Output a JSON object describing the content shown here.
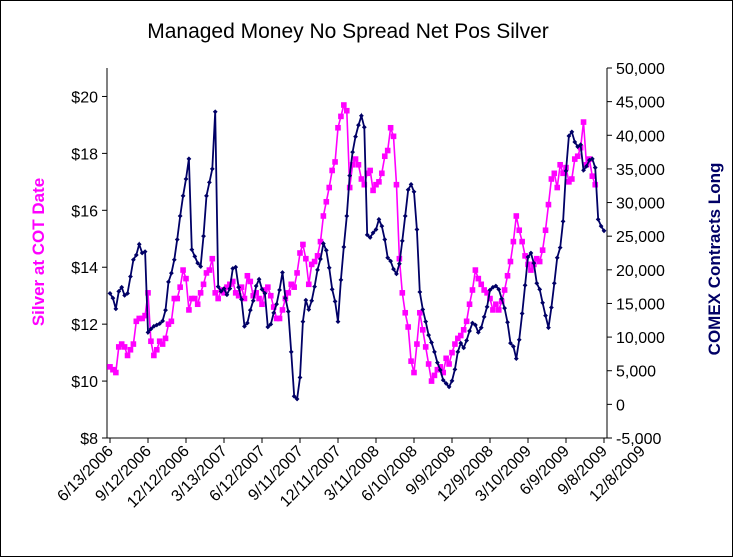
{
  "chart_data": {
    "type": "line",
    "title": "Managed Money No Spread Net Pos Silver",
    "y_left": {
      "label": "Silver at COT Date",
      "min": 8,
      "max": 21,
      "step": 2,
      "ticks": [
        "$8",
        "$10",
        "$12",
        "$14",
        "$16",
        "$18",
        "$20"
      ],
      "tick_values": [
        8,
        10,
        12,
        14,
        16,
        18,
        20
      ]
    },
    "y_right": {
      "label": "COMEX Contracts Long",
      "min": -5000,
      "max": 50000,
      "ticks": [
        "-5,000",
        "0",
        "5,000",
        "10,000",
        "15,000",
        "20,000",
        "25,000",
        "30,000",
        "35,000",
        "40,000",
        "45,000",
        "50,000"
      ],
      "tick_values": [
        -5000,
        0,
        5000,
        10000,
        15000,
        20000,
        25000,
        30000,
        35000,
        40000,
        45000,
        50000
      ]
    },
    "x_tick_labels": [
      "6/13/2006",
      "9/12/2006",
      "12/12/2006",
      "3/13/2007",
      "6/12/2007",
      "9/11/2007",
      "12/11/2007",
      "3/11/2008",
      "6/10/2008",
      "9/9/2008",
      "12/9/2008",
      "3/10/2009",
      "6/9/2009",
      "9/8/2009",
      "12/8/2009"
    ],
    "x_label_every": 13,
    "grid": false,
    "legend": "none",
    "series": [
      {
        "axis": "left",
        "color": "#ff00ff",
        "marker": "square",
        "values": [
          10.5,
          10.4,
          10.3,
          11.2,
          11.3,
          11.2,
          10.9,
          11.1,
          11.3,
          12.1,
          12.2,
          12.2,
          12.3,
          13.1,
          11.4,
          10.9,
          11.1,
          11.4,
          11.3,
          11.5,
          12.0,
          12.1,
          12.9,
          12.9,
          13.3,
          13.9,
          13.6,
          12.5,
          12.9,
          12.9,
          12.7,
          13.1,
          13.4,
          13.8,
          13.9,
          14.3,
          13.1,
          12.9,
          13.2,
          13.1,
          13.3,
          13.4,
          13.5,
          13.1,
          13.0,
          13.3,
          12.9,
          13.7,
          13.5,
          13.0,
          13.1,
          12.9,
          12.7,
          13.2,
          13.3,
          13.0,
          12.6,
          12.2,
          12.2,
          12.5,
          12.9,
          13.1,
          13.4,
          13.3,
          13.8,
          14.5,
          14.8,
          14.3,
          13.4,
          14.1,
          14.2,
          14.4,
          14.9,
          15.8,
          16.3,
          16.8,
          17.4,
          17.7,
          18.9,
          19.3,
          19.7,
          19.5,
          16.8,
          17.6,
          17.8,
          17.6,
          17.1,
          16.9,
          17.3,
          17.4,
          16.7,
          16.9,
          17.0,
          17.3,
          17.9,
          18.1,
          18.9,
          18.6,
          16.9,
          14.3,
          13.1,
          12.4,
          11.9,
          10.7,
          10.3,
          11.3,
          12.4,
          11.8,
          11.2,
          10.6,
          10.0,
          10.2,
          10.4,
          10.5,
          10.3,
          10.8,
          10.6,
          11.0,
          11.3,
          11.5,
          11.6,
          11.8,
          12.1,
          12.7,
          13.2,
          13.9,
          13.6,
          13.4,
          13.2,
          13.1,
          12.9,
          12.5,
          12.7,
          12.5,
          12.8,
          13.2,
          13.7,
          14.2,
          14.9,
          15.8,
          15.3,
          14.9,
          14.4,
          14.1,
          13.9,
          14.1,
          14.3,
          14.2,
          14.6,
          15.3,
          16.2,
          17.1,
          17.3,
          16.8,
          17.6,
          17.3,
          17.5,
          17.0,
          17.1,
          17.8,
          17.9,
          18.2,
          19.1,
          17.6,
          17.8,
          17.2,
          16.9
        ]
      },
      {
        "axis": "right",
        "color": "#000066",
        "marker": "diamond",
        "values": [
          16500,
          15800,
          14200,
          16800,
          17400,
          16200,
          16500,
          19000,
          21500,
          22200,
          23800,
          22500,
          22700,
          10700,
          11200,
          11600,
          11800,
          12000,
          12400,
          14000,
          18200,
          19500,
          21500,
          24500,
          28000,
          31000,
          33500,
          36500,
          23000,
          22000,
          21000,
          20500,
          25000,
          31000,
          33000,
          35000,
          43500,
          17500,
          16800,
          17200,
          16300,
          17200,
          20200,
          20400,
          17400,
          15600,
          11600,
          12100,
          14000,
          15400,
          17600,
          18600,
          17100,
          16500,
          11500,
          11900,
          13600,
          14900,
          17000,
          19600,
          15800,
          13800,
          7800,
          1200,
          800,
          4000,
          12300,
          15500,
          14100,
          15400,
          17500,
          20000,
          21600,
          23900,
          22900,
          20300,
          17100,
          15300,
          12300,
          18500,
          23400,
          28000,
          34000,
          37500,
          39800,
          41500,
          42900,
          41200,
          25200,
          24800,
          25500,
          26000,
          27500,
          26500,
          24500,
          21800,
          21300,
          20100,
          19400,
          20900,
          24300,
          28000,
          31900,
          32700,
          31600,
          26000,
          16700,
          14100,
          12300,
          10300,
          9200,
          7800,
          6200,
          5100,
          3600,
          3100,
          2600,
          3500,
          5200,
          7800,
          9100,
          8400,
          9500,
          10900,
          12100,
          11800,
          10700,
          11400,
          13000,
          14500,
          17000,
          17400,
          17600,
          17100,
          15700,
          14300,
          12200,
          9100,
          8600,
          6800,
          9600,
          13500,
          17700,
          21900,
          22500,
          21000,
          18000,
          17100,
          15100,
          13200,
          11400,
          14400,
          18000,
          21800,
          23300,
          27200,
          34700,
          39900,
          40500,
          39000,
          38300,
          38600,
          34800,
          35400,
          36300,
          36500,
          35200,
          27500,
          26500,
          25800
        ]
      }
    ]
  }
}
